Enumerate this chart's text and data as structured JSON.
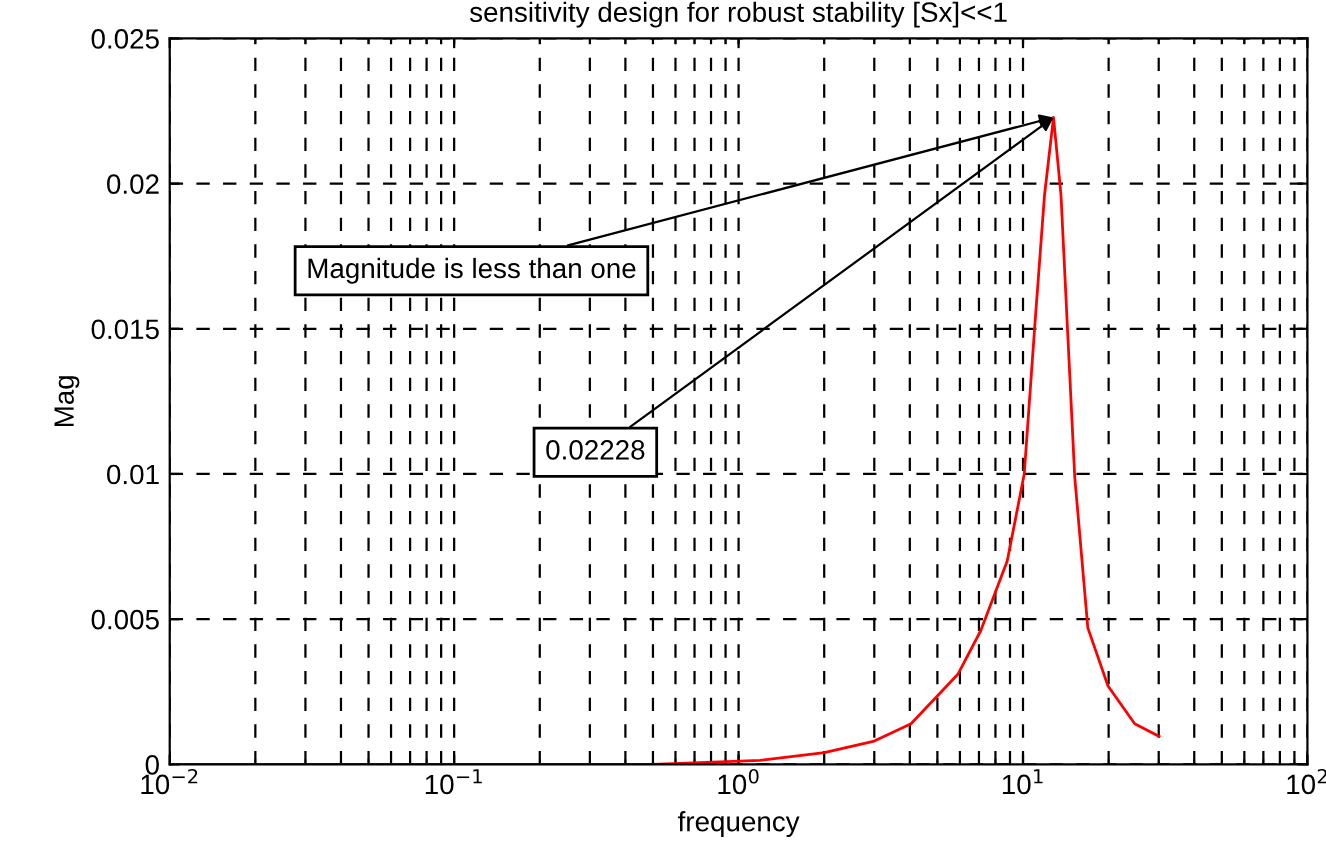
{
  "chart_data": {
    "type": "line",
    "title": "sensitivity design for robust stability [Sx]<<1",
    "xlabel": "frequency",
    "ylabel": "Mag",
    "log": "x",
    "grid": true,
    "marker": "none",
    "line_style": "solid",
    "x": [
      0.01,
      0.1,
      0.5,
      1.19,
      2.0,
      3.0,
      4.04,
      5.9,
      7.1,
      8.8,
      10.1,
      11.0,
      11.9,
      12.8,
      13.6,
      14.4,
      15.2,
      16.9,
      19.9,
      24.7,
      30.1
    ],
    "series": [
      {
        "color": "#ff0000",
        "values": [
          0,
          0,
          0,
          0.00014,
          0.0004,
          0.0008,
          0.0014,
          0.0031,
          0.0046,
          0.007,
          0.01,
          0.0151,
          0.0196,
          0.02228,
          0.0196,
          0.0146,
          0.0099,
          0.0047,
          0.0027,
          0.0014,
          0.00096
        ]
      }
    ],
    "xlim": [
      0.01,
      100
    ],
    "ylim": [
      0,
      0.025
    ],
    "xticks": [
      {
        "value": 0.01,
        "label": "10$^{−2}$"
      },
      {
        "value": 0.1,
        "label": "10$^{−1}$"
      },
      {
        "value": 1,
        "label": "10$^{0}$"
      },
      {
        "value": 10,
        "label": "10$^{1}$"
      },
      {
        "value": 100,
        "label": "10$^{2}$"
      }
    ],
    "yticks": [
      0,
      0.005,
      0.01,
      0.015,
      0.02,
      0.025
    ],
    "annotations": [
      {
        "text": "Magnitude is less than one",
        "x": 12.8,
        "y": 0.02228
      },
      {
        "text": "0.02228",
        "x": 12.8,
        "y": 0.02228
      }
    ]
  }
}
